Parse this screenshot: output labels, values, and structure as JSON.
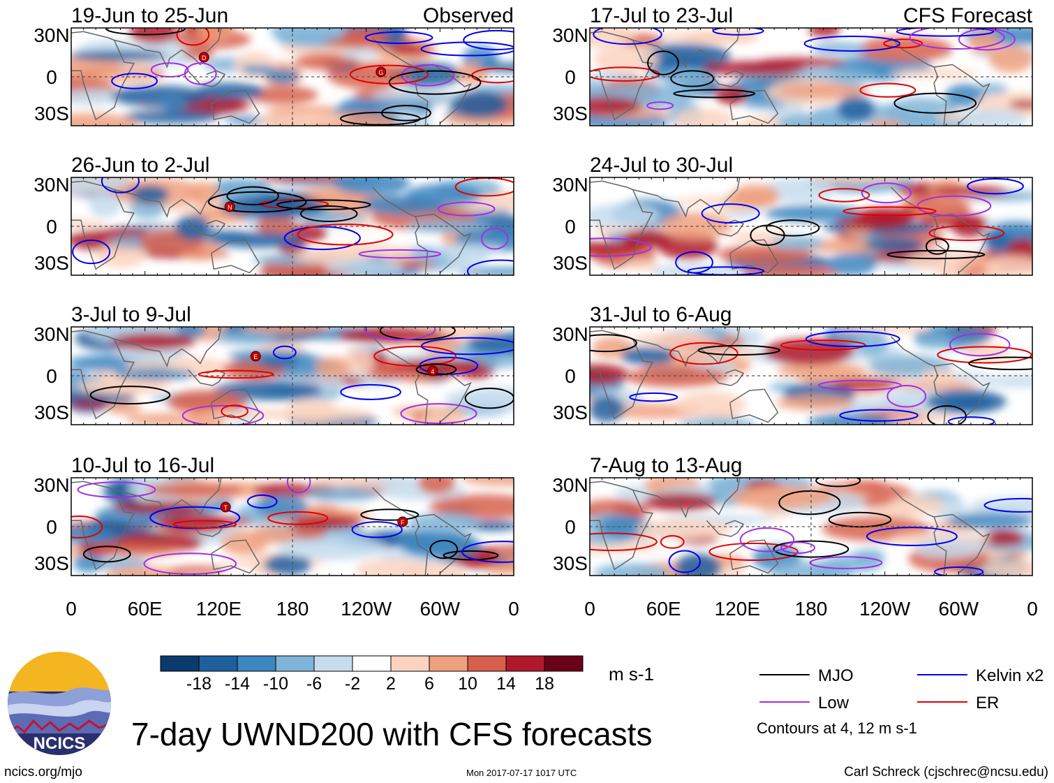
{
  "chart_data": {
    "type": "heatmap",
    "title": "7-day UWND200 with CFS forecasts",
    "variable": "200-hPa zonal wind anomaly",
    "units": "m s-1",
    "columns": [
      {
        "label": "Observed",
        "panels": [
          "19-Jun to 25-Jun",
          "26-Jun to 2-Jul",
          "3-Jul to 9-Jul",
          "10-Jul to 16-Jul"
        ]
      },
      {
        "label": "CFS Forecast",
        "panels": [
          "17-Jul to 23-Jul",
          "24-Jul to 30-Jul",
          "31-Jul to 6-Aug",
          "7-Aug to 13-Aug"
        ]
      }
    ],
    "x_ticks": [
      "0",
      "60E",
      "120E",
      "180",
      "120W",
      "60W",
      "0"
    ],
    "y_ticks": [
      "30N",
      "0",
      "30S"
    ],
    "xlim_deg": [
      0,
      360
    ],
    "ylim_deg": [
      -40,
      40
    ],
    "colorbar": {
      "tick_labels": [
        "-18",
        "-14",
        "-10",
        "-6",
        "-2",
        "2",
        "6",
        "10",
        "14",
        "18"
      ],
      "colors": [
        "#0a3a6e",
        "#1f5fa0",
        "#3d86bf",
        "#7fb4d8",
        "#c6dced",
        "#ffffff",
        "#fbd3c0",
        "#f0a07e",
        "#d7604d",
        "#b0182c",
        "#6b0119"
      ]
    },
    "legend": [
      {
        "label": "MJO",
        "color": "#000000"
      },
      {
        "label": "Kelvin x2",
        "color": "#0000ee"
      },
      {
        "label": "Low",
        "color": "#a030e0"
      },
      {
        "label": "ER",
        "color": "#e00000"
      }
    ],
    "contour_note": "Contours at 4, 12 m s-1",
    "storm_labels": [
      {
        "panel": "19-Jun to 25-Jun",
        "letters": [
          "D",
          "G"
        ]
      },
      {
        "panel": "26-Jun to 2-Jul",
        "letters": [
          "N"
        ]
      },
      {
        "panel": "3-Jul to 9-Jul",
        "letters": [
          "E",
          "4"
        ]
      },
      {
        "panel": "10-Jul to 16-Jul",
        "letters": [
          "T",
          "F"
        ]
      }
    ]
  },
  "logo": {
    "text": "NCICS"
  },
  "footer": {
    "left": "ncics.org/mjo",
    "timestamp": "Mon 2017-07-17 1017 UTC",
    "right": "Carl Schreck (cjschrec@ncsu.edu)"
  }
}
